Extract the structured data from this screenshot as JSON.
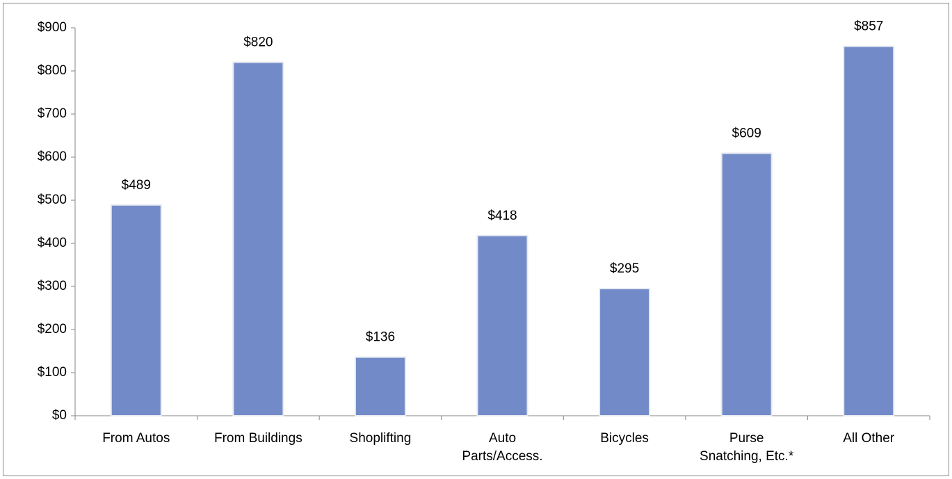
{
  "chart_data": {
    "type": "bar",
    "categories": [
      "From Autos",
      "From Buildings",
      "Shoplifting",
      "Auto\nParts/Access.",
      "Bicycles",
      "Purse\nSnatching, Etc.*",
      "All Other"
    ],
    "values": [
      489,
      820,
      136,
      418,
      295,
      609,
      857
    ],
    "value_labels": [
      "$489",
      "$820",
      "$136",
      "$418",
      "$295",
      "$609",
      "$857"
    ],
    "color": "#728bc8",
    "ylim": [
      0,
      900
    ],
    "yticks": [
      {
        "value": 0,
        "label": "$0"
      },
      {
        "value": 100,
        "label": "$100"
      },
      {
        "value": 200,
        "label": "$200"
      },
      {
        "value": 300,
        "label": "$300"
      },
      {
        "value": 400,
        "label": "$400"
      },
      {
        "value": 500,
        "label": "$500"
      },
      {
        "value": 600,
        "label": "$600"
      },
      {
        "value": 700,
        "label": "$700"
      },
      {
        "value": 800,
        "label": "$800"
      },
      {
        "value": 900,
        "label": "$900"
      }
    ],
    "grid": false
  }
}
